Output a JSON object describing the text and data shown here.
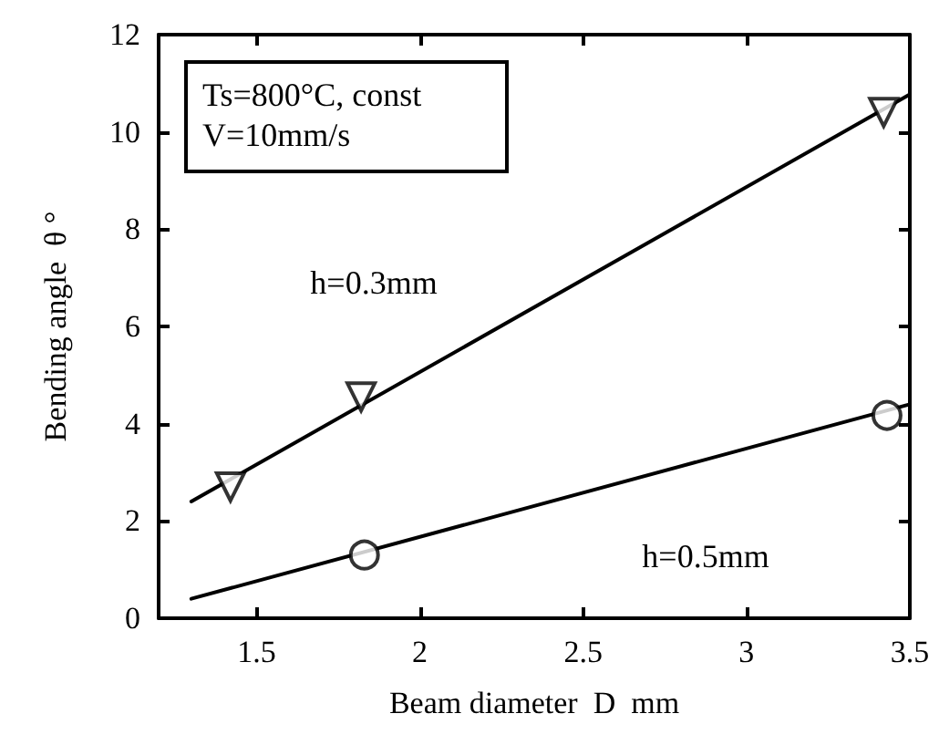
{
  "chart_data": {
    "type": "scatter",
    "xlabel": "Beam diameter  D  mm",
    "ylabel": "Bending angle  θ °",
    "xlim": [
      1.2,
      3.5
    ],
    "xticks": [
      1.5,
      2,
      2.5,
      3,
      3.5
    ],
    "ylim": [
      0,
      12
    ],
    "yticks": [
      0,
      2,
      4,
      6,
      8,
      10,
      12
    ],
    "annotations": [
      "Ts=800°C, const",
      "V=10mm/s",
      "h=0.3mm",
      "h=0.5mm"
    ],
    "series": [
      {
        "marker": "triangle",
        "color": "#000000",
        "x": [
          1.42,
          1.82,
          3.42
        ],
        "values": [
          2.7,
          4.55,
          10.4
        ]
      },
      {
        "type": "line",
        "marker": "none",
        "line_style": "solid",
        "color": "#000000",
        "x": [
          1.3,
          3.5
        ],
        "values": [
          2.4,
          10.77
        ]
      },
      {
        "marker": "circle",
        "color": "#000000",
        "x": [
          1.83,
          3.43
        ],
        "values": [
          1.3,
          4.17
        ]
      },
      {
        "type": "line",
        "marker": "none",
        "line_style": "solid",
        "color": "#000000",
        "x": [
          1.3,
          3.5
        ],
        "values": [
          0.4,
          4.4
        ]
      }
    ]
  }
}
